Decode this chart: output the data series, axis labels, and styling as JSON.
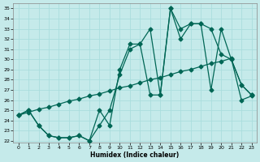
{
  "xlabel": "Humidex (Indice chaleur)",
  "bg_color": "#c5eaea",
  "grid_color": "#aadddd",
  "line_color": "#006655",
  "markersize": 2.5,
  "linewidth": 0.9,
  "xlim": [
    -0.5,
    23.5
  ],
  "ylim": [
    21.8,
    35.5
  ],
  "xticks": [
    0,
    1,
    2,
    3,
    4,
    5,
    6,
    7,
    8,
    9,
    10,
    11,
    12,
    13,
    14,
    15,
    16,
    17,
    18,
    19,
    20,
    21,
    22,
    23
  ],
  "yticks": [
    22,
    23,
    24,
    25,
    26,
    27,
    28,
    29,
    30,
    31,
    32,
    33,
    34,
    35
  ],
  "line1_x": [
    0,
    1,
    2,
    3,
    4,
    5,
    6,
    7,
    8,
    9,
    10,
    11,
    12,
    13,
    14,
    15,
    16,
    17,
    18,
    19,
    20,
    21,
    22,
    23
  ],
  "line1_y": [
    24.5,
    25.0,
    23.5,
    22.5,
    22.3,
    22.3,
    22.5,
    22.0,
    23.5,
    25.0,
    28.5,
    31.0,
    31.5,
    33.0,
    26.5,
    35.0,
    33.0,
    33.5,
    33.5,
    33.0,
    30.5,
    30.0,
    27.5,
    26.5
  ],
  "line2_x": [
    0,
    1,
    2,
    3,
    4,
    5,
    6,
    7,
    8,
    9,
    10,
    11,
    12,
    13,
    14,
    15,
    16,
    17,
    18,
    19,
    20,
    21,
    22,
    23
  ],
  "line2_y": [
    24.5,
    25.0,
    23.5,
    22.5,
    22.3,
    22.3,
    22.5,
    22.0,
    25.0,
    23.5,
    29.0,
    31.5,
    31.5,
    26.5,
    26.5,
    35.0,
    32.0,
    33.5,
    33.5,
    27.0,
    33.0,
    30.0,
    27.5,
    26.5
  ],
  "line3_x": [
    0,
    1,
    2,
    3,
    4,
    5,
    6,
    7,
    8,
    9,
    10,
    11,
    12,
    13,
    14,
    15,
    16,
    17,
    18,
    19,
    20,
    21,
    22,
    23
  ],
  "line3_y": [
    24.5,
    24.8,
    25.1,
    25.3,
    25.6,
    25.9,
    26.1,
    26.4,
    26.6,
    26.9,
    27.2,
    27.4,
    27.7,
    28.0,
    28.2,
    28.5,
    28.8,
    29.0,
    29.3,
    29.6,
    29.8,
    30.1,
    26.0,
    26.4
  ]
}
